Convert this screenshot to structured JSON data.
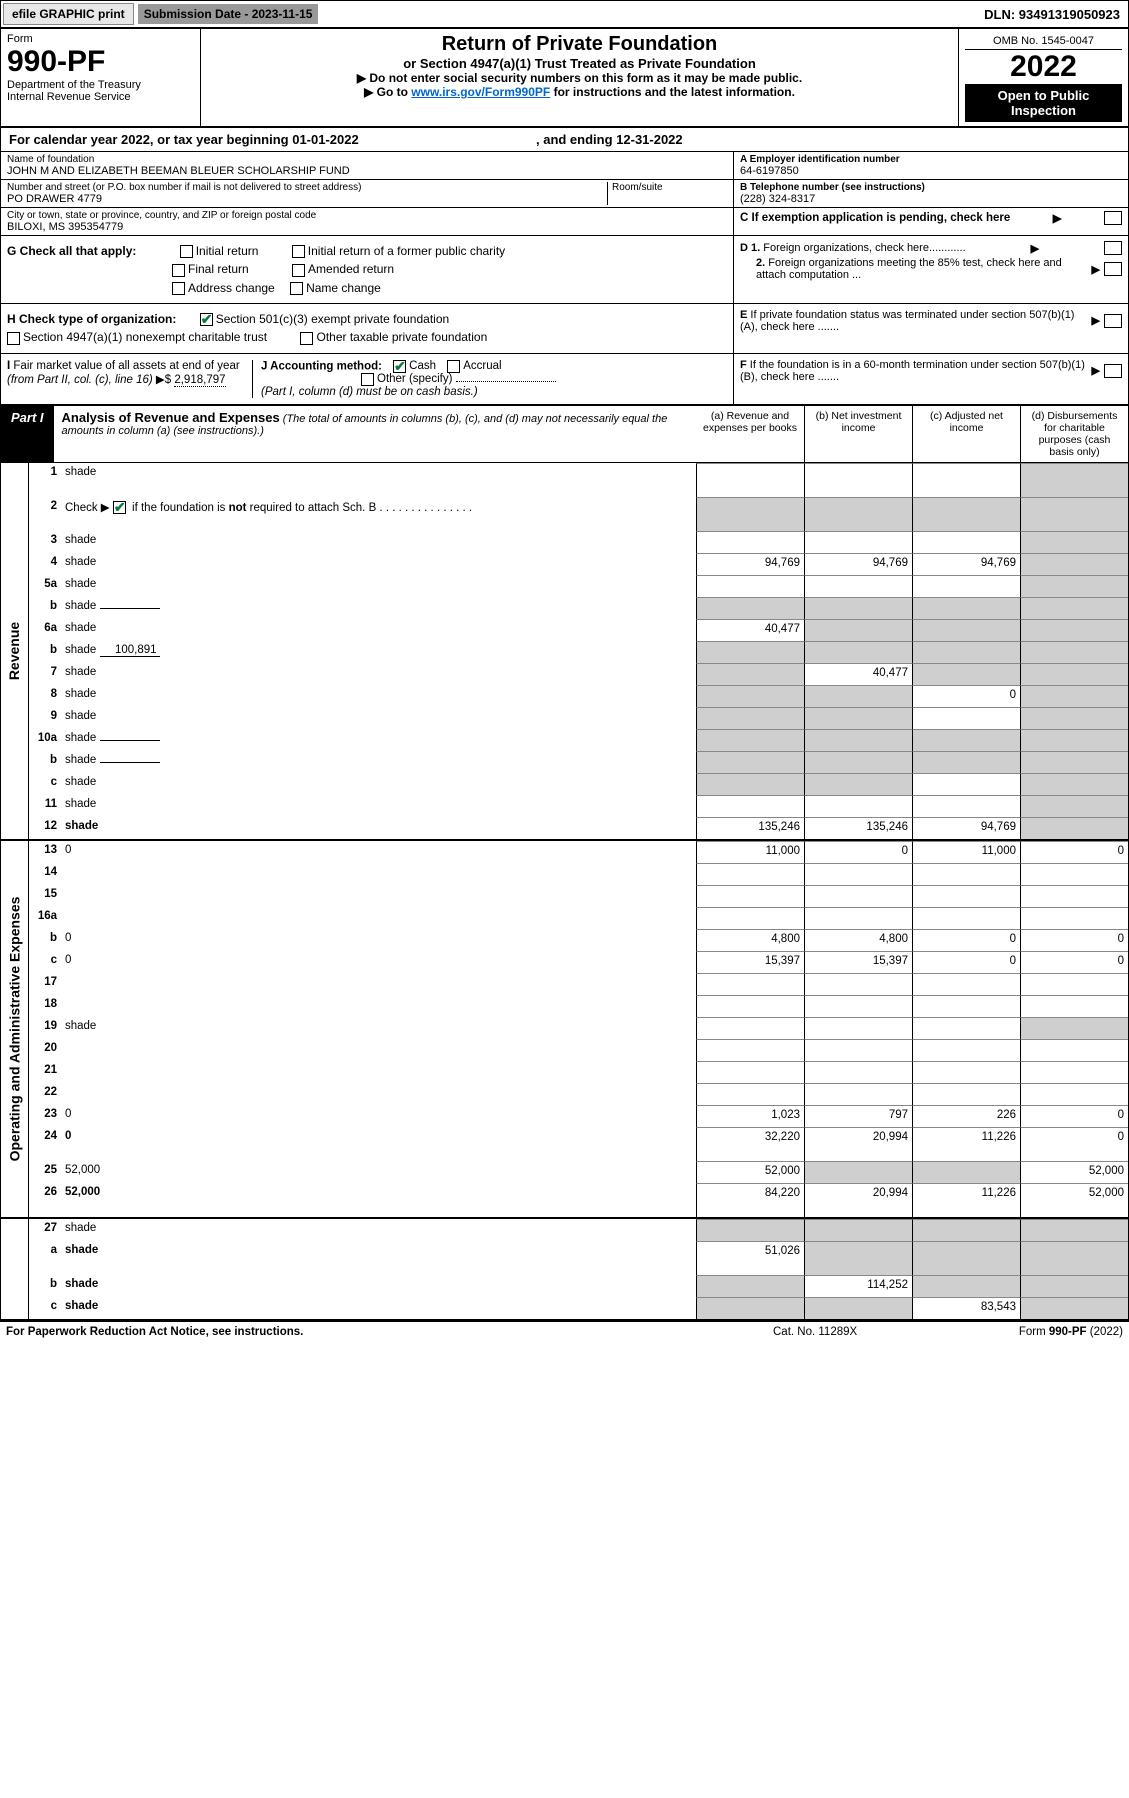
{
  "topbar": {
    "efile": "efile GRAPHIC print",
    "submission_label": "Submission Date - 2023-11-15",
    "dln": "DLN: 93491319050923"
  },
  "header": {
    "form": "Form",
    "form_number": "990-PF",
    "dept": "Department of the Treasury\nInternal Revenue Service",
    "title": "Return of Private Foundation",
    "subtitle": "or Section 4947(a)(1) Trust Treated as Private Foundation",
    "note1": "▶ Do not enter social security numbers on this form as it may be made public.",
    "note2_pre": "▶ Go to ",
    "note2_link": "www.irs.gov/Form990PF",
    "note2_post": " for instructions and the latest information.",
    "omb": "OMB No. 1545-0047",
    "year": "2022",
    "open": "Open to Public Inspection"
  },
  "calyear": {
    "text": "For calendar year 2022, or tax year beginning 01-01-2022",
    "ending": ", and ending 12-31-2022"
  },
  "info": {
    "name_lbl": "Name of foundation",
    "name": "JOHN M AND ELIZABETH BEEMAN BLEUER SCHOLARSHIP FUND",
    "addr_lbl": "Number and street (or P.O. box number if mail is not delivered to street address)",
    "addr": "PO DRAWER 4779",
    "room_lbl": "Room/suite",
    "city_lbl": "City or town, state or province, country, and ZIP or foreign postal code",
    "city": "BILOXI, MS  395354779",
    "ein_lbl": "A Employer identification number",
    "ein": "64-6197850",
    "phone_lbl": "B Telephone number (see instructions)",
    "phone": "(228) 324-8317",
    "c_lbl": "C If exemption application is pending, check here"
  },
  "checks": {
    "g_lbl": "G Check all that apply:",
    "g_opts": [
      "Initial return",
      "Initial return of a former public charity",
      "Final return",
      "Amended return",
      "Address change",
      "Name change"
    ],
    "h_lbl": "H Check type of organization:",
    "h_501c3": "Section 501(c)(3) exempt private foundation",
    "h_4947": "Section 4947(a)(1) nonexempt charitable trust",
    "h_other": "Other taxable private foundation",
    "i_lbl": "I Fair market value of all assets at end of year (from Part II, col. (c), line 16)",
    "i_val": "2,918,797",
    "j_lbl": "J Accounting method:",
    "j_cash": "Cash",
    "j_accrual": "Accrual",
    "j_other": "Other (specify)",
    "j_note": "(Part I, column (d) must be on cash basis.)",
    "d1": "D 1. Foreign organizations, check here",
    "d2": "2. Foreign organizations meeting the 85% test, check here and attach computation ...",
    "e": "E  If private foundation status was terminated under section 507(b)(1)(A), check here .......",
    "f": "F  If the foundation is in a 60-month termination under section 507(b)(1)(B), check here ......."
  },
  "part1": {
    "label": "Part I",
    "title": "Analysis of Revenue and Expenses",
    "note": " (The total of amounts in columns (b), (c), and (d) may not necessarily equal the amounts in column (a) (see instructions).)",
    "col_a": "(a)   Revenue and expenses per books",
    "col_b": "(b)   Net investment income",
    "col_c": "(c)   Adjusted net income",
    "col_d": "(d)   Disbursements for charitable purposes (cash basis only)"
  },
  "sections": {
    "revenue": "Revenue",
    "opadmin": "Operating and Administrative Expenses"
  },
  "rows": [
    {
      "n": "1",
      "d": "shade",
      "a": "",
      "b": "",
      "c": "",
      "sec": "rev",
      "tall": true
    },
    {
      "n": "2",
      "d": "shade",
      "a": "shade",
      "b": "shade",
      "c": "shade",
      "sec": "rev",
      "tall": true,
      "checkbox": true
    },
    {
      "n": "3",
      "d": "shade",
      "a": "",
      "b": "",
      "c": "",
      "sec": "rev"
    },
    {
      "n": "4",
      "d": "shade",
      "a": "94,769",
      "b": "94,769",
      "c": "94,769",
      "sec": "rev"
    },
    {
      "n": "5a",
      "d": "shade",
      "a": "",
      "b": "",
      "c": "",
      "sec": "rev"
    },
    {
      "n": "b",
      "d": "shade",
      "a": "shade",
      "b": "shade",
      "c": "shade",
      "sec": "rev",
      "sub": true,
      "subval": ""
    },
    {
      "n": "6a",
      "d": "shade",
      "a": "40,477",
      "b": "shade",
      "c": "shade",
      "sec": "rev"
    },
    {
      "n": "b",
      "d": "shade",
      "a": "shade",
      "b": "shade",
      "c": "shade",
      "sec": "rev",
      "sub": true,
      "subval": "100,891"
    },
    {
      "n": "7",
      "d": "shade",
      "a": "shade",
      "b": "40,477",
      "c": "shade",
      "sec": "rev"
    },
    {
      "n": "8",
      "d": "shade",
      "a": "shade",
      "b": "shade",
      "c": "0",
      "sec": "rev"
    },
    {
      "n": "9",
      "d": "shade",
      "a": "shade",
      "b": "shade",
      "c": "",
      "sec": "rev"
    },
    {
      "n": "10a",
      "d": "shade",
      "a": "shade",
      "b": "shade",
      "c": "shade",
      "sec": "rev",
      "sub": true,
      "subval": ""
    },
    {
      "n": "b",
      "d": "shade",
      "a": "shade",
      "b": "shade",
      "c": "shade",
      "sec": "rev",
      "sub": true,
      "subval": ""
    },
    {
      "n": "c",
      "d": "shade",
      "a": "shade",
      "b": "shade",
      "c": "",
      "sec": "rev"
    },
    {
      "n": "11",
      "d": "shade",
      "a": "",
      "b": "",
      "c": "",
      "sec": "rev"
    },
    {
      "n": "12",
      "d": "shade",
      "a": "135,246",
      "b": "135,246",
      "c": "94,769",
      "sec": "rev",
      "bold": true
    },
    {
      "n": "13",
      "d": "0",
      "a": "11,000",
      "b": "0",
      "c": "11,000",
      "sec": "op"
    },
    {
      "n": "14",
      "d": "",
      "a": "",
      "b": "",
      "c": "",
      "sec": "op"
    },
    {
      "n": "15",
      "d": "",
      "a": "",
      "b": "",
      "c": "",
      "sec": "op"
    },
    {
      "n": "16a",
      "d": "",
      "a": "",
      "b": "",
      "c": "",
      "sec": "op"
    },
    {
      "n": "b",
      "d": "0",
      "a": "4,800",
      "b": "4,800",
      "c": "0",
      "sec": "op"
    },
    {
      "n": "c",
      "d": "0",
      "a": "15,397",
      "b": "15,397",
      "c": "0",
      "sec": "op"
    },
    {
      "n": "17",
      "d": "",
      "a": "",
      "b": "",
      "c": "",
      "sec": "op"
    },
    {
      "n": "18",
      "d": "",
      "a": "",
      "b": "",
      "c": "",
      "sec": "op"
    },
    {
      "n": "19",
      "d": "shade",
      "a": "",
      "b": "",
      "c": "",
      "sec": "op"
    },
    {
      "n": "20",
      "d": "",
      "a": "",
      "b": "",
      "c": "",
      "sec": "op"
    },
    {
      "n": "21",
      "d": "",
      "a": "",
      "b": "",
      "c": "",
      "sec": "op"
    },
    {
      "n": "22",
      "d": "",
      "a": "",
      "b": "",
      "c": "",
      "sec": "op"
    },
    {
      "n": "23",
      "d": "0",
      "a": "1,023",
      "b": "797",
      "c": "226",
      "sec": "op"
    },
    {
      "n": "24",
      "d": "0",
      "a": "32,220",
      "b": "20,994",
      "c": "11,226",
      "sec": "op",
      "bold": true,
      "tall": true
    },
    {
      "n": "25",
      "d": "52,000",
      "a": "52,000",
      "b": "shade",
      "c": "shade",
      "sec": "op"
    },
    {
      "n": "26",
      "d": "52,000",
      "a": "84,220",
      "b": "20,994",
      "c": "11,226",
      "sec": "op",
      "bold": true,
      "tall": true
    },
    {
      "n": "27",
      "d": "shade",
      "a": "shade",
      "b": "shade",
      "c": "shade",
      "sec": "bot"
    },
    {
      "n": "a",
      "d": "shade",
      "a": "51,026",
      "b": "shade",
      "c": "shade",
      "sec": "bot",
      "bold": true,
      "tall": true
    },
    {
      "n": "b",
      "d": "shade",
      "a": "shade",
      "b": "114,252",
      "c": "shade",
      "sec": "bot",
      "bold": true
    },
    {
      "n": "c",
      "d": "shade",
      "a": "shade",
      "b": "shade",
      "c": "83,543",
      "sec": "bot",
      "bold": true
    }
  ],
  "footer": {
    "left": "For Paperwork Reduction Act Notice, see instructions.",
    "center": "Cat. No. 11289X",
    "right": "Form 990-PF (2022)"
  },
  "colors": {
    "shade": "#cfcfcf",
    "black": "#000000",
    "link": "#0066cc",
    "check": "#0a7a3a"
  }
}
